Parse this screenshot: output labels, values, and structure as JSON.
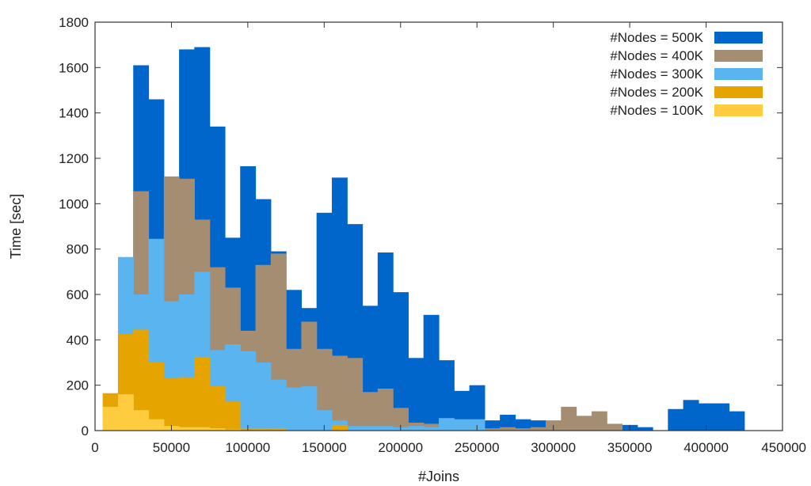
{
  "chart_data": {
    "type": "bar",
    "title": "",
    "xlabel": "#Joins",
    "ylabel": "Time [sec]",
    "xlim": [
      0,
      450000
    ],
    "ylim": [
      0,
      1800
    ],
    "xticks": [
      0,
      50000,
      100000,
      150000,
      200000,
      250000,
      300000,
      350000,
      400000,
      450000
    ],
    "yticks": [
      0,
      200,
      400,
      600,
      800,
      1000,
      1200,
      1400,
      1600,
      1800
    ],
    "grid": false,
    "legend_position": "top-right",
    "bin_width": 10000,
    "bin_starts": [
      5000,
      15000,
      25000,
      35000,
      45000,
      55000,
      65000,
      75000,
      85000,
      95000,
      105000,
      115000,
      125000,
      135000,
      145000,
      155000,
      165000,
      175000,
      185000,
      195000,
      205000,
      215000,
      225000,
      235000,
      245000,
      255000,
      265000,
      275000,
      285000,
      295000,
      305000,
      315000,
      325000,
      335000,
      345000,
      355000,
      365000,
      375000,
      385000,
      395000,
      405000,
      415000
    ],
    "series": [
      {
        "name": "#Nodes = 500K",
        "color": "#0066cc",
        "values": [
          0,
          0,
          1610,
          1460,
          0,
          1680,
          1690,
          1340,
          850,
          1165,
          1020,
          790,
          620,
          540,
          960,
          1115,
          910,
          550,
          785,
          610,
          320,
          510,
          310,
          175,
          200,
          45,
          70,
          50,
          45,
          0,
          0,
          0,
          0,
          0,
          25,
          15,
          0,
          95,
          135,
          120,
          120,
          85
        ]
      },
      {
        "name": "#Nodes = 400K",
        "color": "#a58d72",
        "values": [
          0,
          0,
          1055,
          840,
          1120,
          1110,
          930,
          720,
          630,
          440,
          730,
          780,
          360,
          480,
          360,
          330,
          320,
          170,
          185,
          100,
          35,
          30,
          25,
          20,
          15,
          10,
          15,
          10,
          15,
          45,
          105,
          65,
          85,
          30,
          0,
          0,
          0,
          0,
          0,
          0,
          0,
          0
        ]
      },
      {
        "name": "#Nodes = 300K",
        "color": "#5ab4ef",
        "values": [
          0,
          765,
          600,
          845,
          570,
          600,
          700,
          355,
          380,
          350,
          300,
          225,
          190,
          195,
          90,
          45,
          20,
          20,
          20,
          15,
          20,
          15,
          55,
          50,
          50,
          0,
          0,
          0,
          0,
          0,
          0,
          0,
          0,
          0,
          0,
          0,
          0,
          0,
          0,
          0,
          0,
          0
        ]
      },
      {
        "name": "#Nodes = 200K",
        "color": "#e6a400",
        "values": [
          165,
          425,
          445,
          300,
          230,
          235,
          325,
          195,
          130,
          10,
          10,
          10,
          0,
          0,
          0,
          25,
          0,
          0,
          0,
          0,
          0,
          0,
          0,
          0,
          0,
          0,
          0,
          0,
          0,
          0,
          0,
          0,
          0,
          0,
          0,
          0,
          0,
          0,
          0,
          0,
          0,
          0
        ]
      },
      {
        "name": "#Nodes = 100K",
        "color": "#ffcc40",
        "values": [
          105,
          160,
          90,
          50,
          20,
          15,
          15,
          10,
          5,
          0,
          0,
          0,
          0,
          0,
          0,
          0,
          0,
          0,
          0,
          0,
          0,
          0,
          0,
          0,
          0,
          0,
          0,
          0,
          0,
          0,
          0,
          0,
          0,
          0,
          0,
          0,
          0,
          0,
          0,
          0,
          0,
          0
        ]
      }
    ]
  }
}
